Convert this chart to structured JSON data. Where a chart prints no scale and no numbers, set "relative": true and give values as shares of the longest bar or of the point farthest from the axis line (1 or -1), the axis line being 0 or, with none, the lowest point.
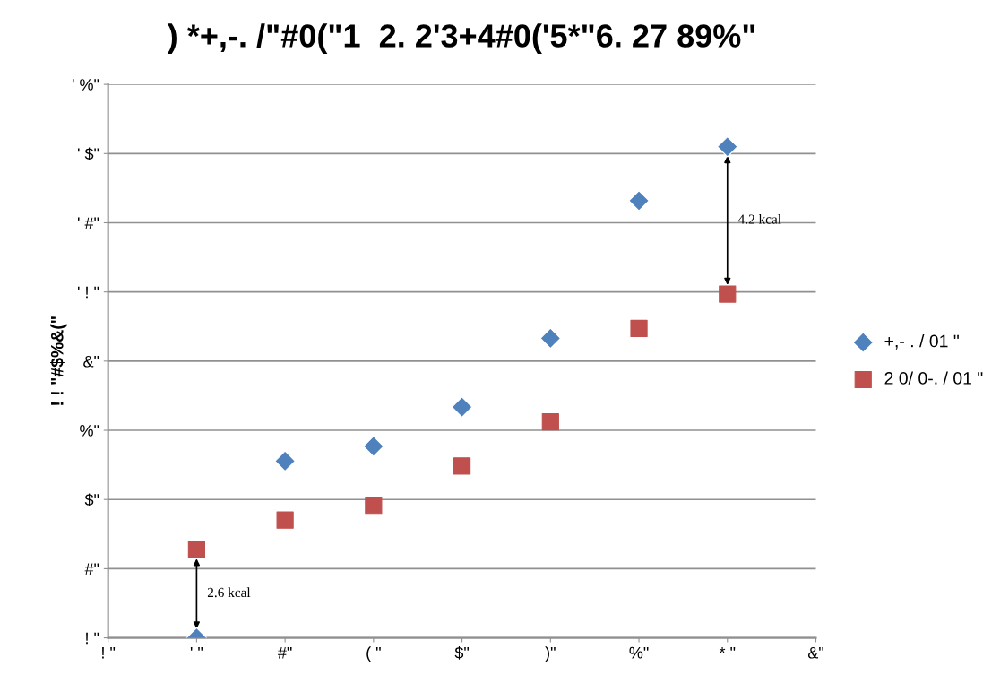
{
  "chart_data": {
    "type": "scatter",
    "title": ") *+,-. /\"#0(\"1  2. 2'3+4#0('5*\"6. 27 89%\"",
    "ylabel": "! ! \"#$%&(\"",
    "categories": [
      "! \"",
      "' \"",
      "#\"",
      "( \"",
      "$\"",
      ")\"",
      "%\"",
      "* \"",
      "&\""
    ],
    "relative": true,
    "y_categories": [
      "' %\"",
      "' $\"",
      "' #\"",
      "' ! \"",
      "&\"",
      "%\"",
      "$\"",
      "#\"",
      "! \""
    ],
    "grid": "y",
    "legend": "right",
    "series": [
      {
        "name": "+,- . / 01 \"",
        "color": "#4f81bd",
        "marker": "diamond",
        "values": [
          null,
          0,
          0.36,
          0.39,
          0.47,
          0.61,
          0.89,
          1,
          null
        ]
      },
      {
        "name": "2 0/ 0-. / 01 \"",
        "color": "#c0504d",
        "marker": "square",
        "values": [
          null,
          0.18,
          0.24,
          0.27,
          0.35,
          0.44,
          0.63,
          0.7,
          null
        ]
      }
    ],
    "annotations": [
      "2.6 kcal",
      "4.2 kcal"
    ]
  }
}
